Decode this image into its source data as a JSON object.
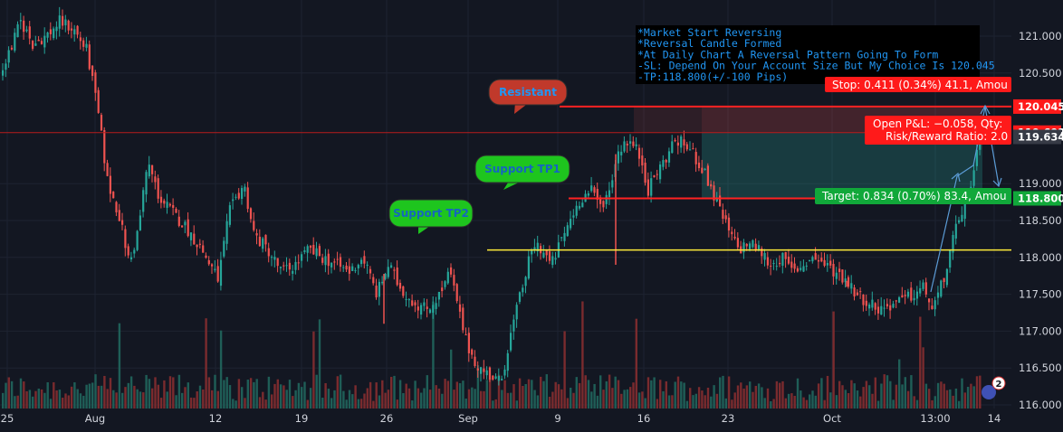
{
  "chart_data": {
    "type": "candlestick",
    "colors": {
      "background": "#131722",
      "grid": "#1e2331",
      "up": "#26a69a",
      "down": "#ef5350",
      "vol_up": "#1f5e57",
      "vol_down": "#7a2b2e",
      "resistance": "#ff2222",
      "support_tp1": "#ff2222",
      "support_tp2": "#ffeb3b",
      "stop_label": "#ff1a1a",
      "target_label": "#11a83a",
      "note_bg": "#000000",
      "note_text": "#2196f3"
    },
    "y_axis": {
      "range": [
        115.9,
        121.25
      ],
      "ticks": [
        "121.000",
        "120.500",
        "120.045",
        "119.692",
        "119.634",
        "119.000",
        "118.800",
        "118.500",
        "118.000",
        "117.500",
        "117.000",
        "116.500",
        "116.000"
      ],
      "plain_ticks": [
        121.0,
        120.5,
        119.0,
        118.5,
        118.0,
        117.5,
        117.0,
        116.5,
        116.0
      ],
      "price_labels": [
        {
          "value": 120.045,
          "text": "120.045",
          "color": "#ff1a1a"
        },
        {
          "value": 119.692,
          "text": "119.692",
          "color": "#ff1a1a"
        },
        {
          "value": 119.634,
          "text": "119.634",
          "color": "#363a45"
        },
        {
          "value": 118.8,
          "text": "118.800",
          "color": "#11a83a"
        }
      ]
    },
    "x_axis": {
      "ticks": [
        {
          "label": "25"
        },
        {
          "label": "Aug"
        },
        {
          "label": "12"
        },
        {
          "label": "19"
        },
        {
          "label": "26"
        },
        {
          "label": "Sep"
        },
        {
          "label": "9"
        },
        {
          "label": "16"
        },
        {
          "label": "23"
        },
        {
          "label": "Oct"
        },
        {
          "label": "13:00"
        },
        {
          "label": "14"
        }
      ]
    },
    "levels": {
      "resistance": 120.045,
      "entry_line": 119.692,
      "support_tp1": 118.8,
      "support_tp2": 118.1
    },
    "price_path": [
      [
        0,
        120.5
      ],
      [
        10,
        120.8
      ],
      [
        22,
        121.2
      ],
      [
        35,
        120.9
      ],
      [
        50,
        121.0
      ],
      [
        65,
        121.2
      ],
      [
        80,
        121.1
      ],
      [
        95,
        120.8
      ],
      [
        108,
        119.9
      ],
      [
        118,
        119.0
      ],
      [
        130,
        118.6
      ],
      [
        142,
        117.9
      ],
      [
        152,
        118.4
      ],
      [
        162,
        119.3
      ],
      [
        175,
        118.8
      ],
      [
        190,
        118.6
      ],
      [
        205,
        118.4
      ],
      [
        222,
        118.1
      ],
      [
        240,
        117.7
      ],
      [
        252,
        118.6
      ],
      [
        268,
        119.0
      ],
      [
        280,
        118.3
      ],
      [
        295,
        118.1
      ],
      [
        310,
        117.8
      ],
      [
        325,
        117.9
      ],
      [
        340,
        118.1
      ],
      [
        355,
        118.0
      ],
      [
        370,
        117.9
      ],
      [
        385,
        117.8
      ],
      [
        400,
        118.0
      ],
      [
        415,
        117.5
      ],
      [
        428,
        117.9
      ],
      [
        440,
        117.6
      ],
      [
        455,
        117.4
      ],
      [
        470,
        117.3
      ],
      [
        485,
        117.5
      ],
      [
        496,
        117.8
      ],
      [
        505,
        117.3
      ],
      [
        515,
        116.8
      ],
      [
        528,
        116.5
      ],
      [
        540,
        116.4
      ],
      [
        552,
        116.3
      ],
      [
        562,
        116.9
      ],
      [
        572,
        117.4
      ],
      [
        582,
        117.9
      ],
      [
        590,
        118.2
      ],
      [
        598,
        118.1
      ],
      [
        608,
        117.9
      ],
      [
        618,
        118.2
      ],
      [
        628,
        118.5
      ],
      [
        640,
        118.8
      ],
      [
        652,
        118.9
      ],
      [
        662,
        118.7
      ],
      [
        672,
        118.9
      ],
      [
        680,
        119.4
      ],
      [
        690,
        119.6
      ],
      [
        700,
        119.5
      ],
      [
        708,
        119.3
      ],
      [
        715,
        118.9
      ],
      [
        722,
        119.1
      ],
      [
        732,
        119.3
      ],
      [
        745,
        119.6
      ],
      [
        758,
        119.5
      ],
      [
        770,
        119.3
      ],
      [
        782,
        119.0
      ],
      [
        795,
        118.6
      ],
      [
        806,
        118.3
      ],
      [
        815,
        118.1
      ],
      [
        825,
        118.2
      ],
      [
        838,
        118.1
      ],
      [
        850,
        117.9
      ],
      [
        862,
        118.0
      ],
      [
        874,
        117.8
      ],
      [
        886,
        117.9
      ],
      [
        898,
        118.0
      ],
      [
        910,
        117.9
      ],
      [
        922,
        117.8
      ],
      [
        934,
        117.7
      ],
      [
        945,
        117.5
      ],
      [
        958,
        117.4
      ],
      [
        970,
        117.3
      ],
      [
        982,
        117.35
      ],
      [
        995,
        117.4
      ],
      [
        1008,
        117.5
      ],
      [
        1020,
        117.6
      ],
      [
        1028,
        117.3
      ],
      [
        1036,
        117.5
      ],
      [
        1045,
        117.9
      ],
      [
        1053,
        118.3
      ],
      [
        1060,
        118.6
      ],
      [
        1066,
        118.8
      ],
      [
        1072,
        118.9
      ],
      [
        1077,
        119.3
      ],
      [
        1081,
        119.9
      ],
      [
        1084,
        120.0
      ]
    ],
    "spikes": [
      {
        "x": 424,
        "low": 117.1
      },
      {
        "x": 680,
        "low": 117.9
      },
      {
        "x": 935,
        "low": 117.6
      }
    ],
    "trade_box": {
      "x_start": 775,
      "x_end": 1085,
      "entry": 119.692,
      "stop": 120.045,
      "target": 118.8,
      "stop_label": "Stop: 0.411 (0.34%) 41.1, Amou",
      "target_label": "Target: 0.834 (0.70%) 83.4, Amou",
      "pnl_line1": "Open P&L: −0.058, Qty:",
      "pnl_line2": "Risk/Reward Ratio: 2.0"
    },
    "callouts": [
      {
        "text": "Resistant",
        "color": "#c0392b",
        "text_color": "#2196f3"
      },
      {
        "text": "Support TP1",
        "color": "#1ec51e",
        "text_color": "#1565c0"
      },
      {
        "text": "Support TP2",
        "color": "#1ec51e",
        "text_color": "#1565c0"
      }
    ],
    "note_lines": [
      "*Market Start Reversing",
      "*Reversal Candle Formed",
      "*At Daily Chart A Reversal Pattern Going To Form",
      "-SL: Depend On Your Account Size But My Choice Is 120.045",
      "-TP:118.800(+/-100 Pips)"
    ],
    "badge": {
      "count": "2"
    }
  }
}
